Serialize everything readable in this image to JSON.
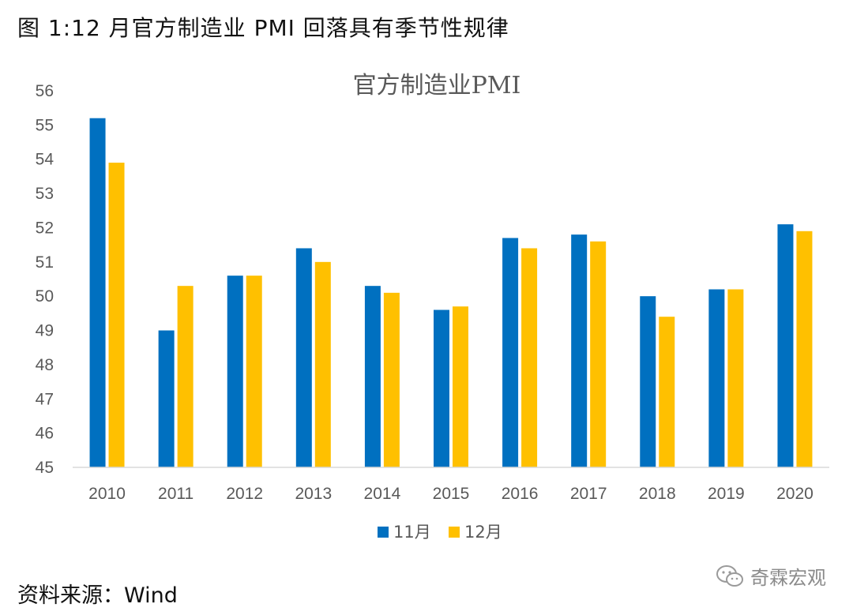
{
  "header": {
    "figure_caption": "图 1:12 月官方制造业 PMI 回落具有季节性规律"
  },
  "footer": {
    "source_note": "资料来源：Wind",
    "watermark_text": "奇霖宏观"
  },
  "chart_data": {
    "type": "bar",
    "title": "官方制造业PMI",
    "xlabel": "",
    "ylabel": "",
    "ylim": [
      45,
      56
    ],
    "yticks": [
      45,
      46,
      47,
      48,
      49,
      50,
      51,
      52,
      53,
      54,
      55,
      56
    ],
    "grid": false,
    "legend_position": "bottom",
    "categories": [
      "2010",
      "2011",
      "2012",
      "2013",
      "2014",
      "2015",
      "2016",
      "2017",
      "2018",
      "2019",
      "2020"
    ],
    "series": [
      {
        "name": "11月",
        "color": "#0070C0",
        "values": [
          55.2,
          49.0,
          50.6,
          51.4,
          50.3,
          49.6,
          51.7,
          51.8,
          50.0,
          50.2,
          52.1
        ]
      },
      {
        "name": "12月",
        "color": "#FFC000",
        "values": [
          53.9,
          50.3,
          50.6,
          51.0,
          50.1,
          49.7,
          51.4,
          51.6,
          49.4,
          50.2,
          51.9
        ]
      }
    ]
  }
}
